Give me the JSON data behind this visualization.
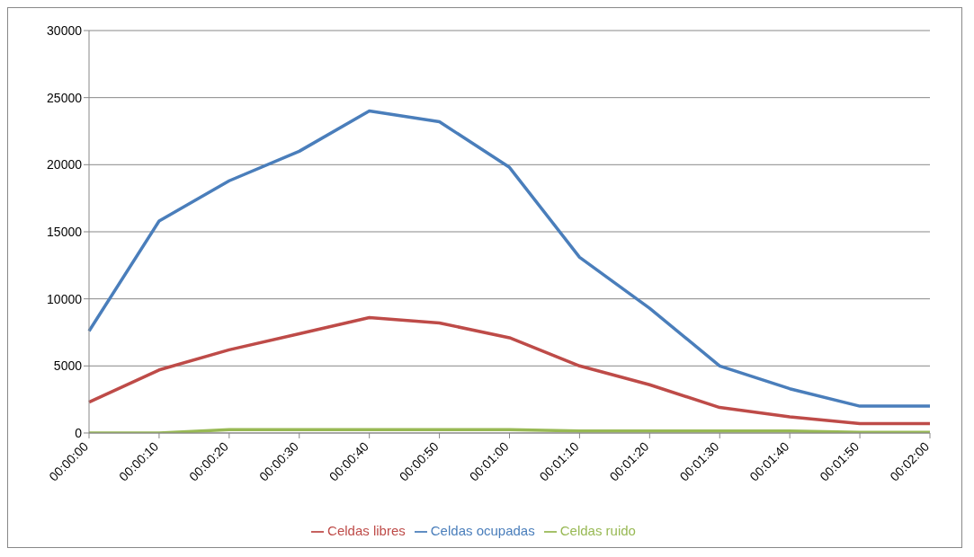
{
  "chart_data": {
    "type": "line",
    "categories": [
      "00:00:00",
      "00:00:10",
      "00:00:20",
      "00:00:30",
      "00:00:40",
      "00:00:50",
      "00:01:00",
      "00:01:10",
      "00:01:20",
      "00:01:30",
      "00:01:40",
      "00:01:50",
      "00:02:00"
    ],
    "series": [
      {
        "name": "Celdas ocupadas",
        "color": "#4a7ebb",
        "values": [
          7600,
          15800,
          18800,
          21000,
          24000,
          23200,
          19800,
          13100,
          9300,
          5000,
          3300,
          2000,
          2000
        ]
      },
      {
        "name": "Celdas libres",
        "color": "#be4b48",
        "values": [
          2300,
          4700,
          6200,
          7400,
          8600,
          8200,
          7100,
          5000,
          3600,
          1900,
          1200,
          700,
          700
        ]
      },
      {
        "name": "Celdas ruido",
        "color": "#98b954",
        "values": [
          0,
          0,
          250,
          250,
          250,
          250,
          250,
          150,
          150,
          150,
          150,
          50,
          50
        ]
      }
    ],
    "ylim": [
      0,
      30000
    ],
    "yticks": [
      0,
      5000,
      10000,
      15000,
      20000,
      25000,
      30000
    ],
    "grid": "y",
    "legend": "bottom",
    "marker": "none",
    "line_style": "solid"
  }
}
